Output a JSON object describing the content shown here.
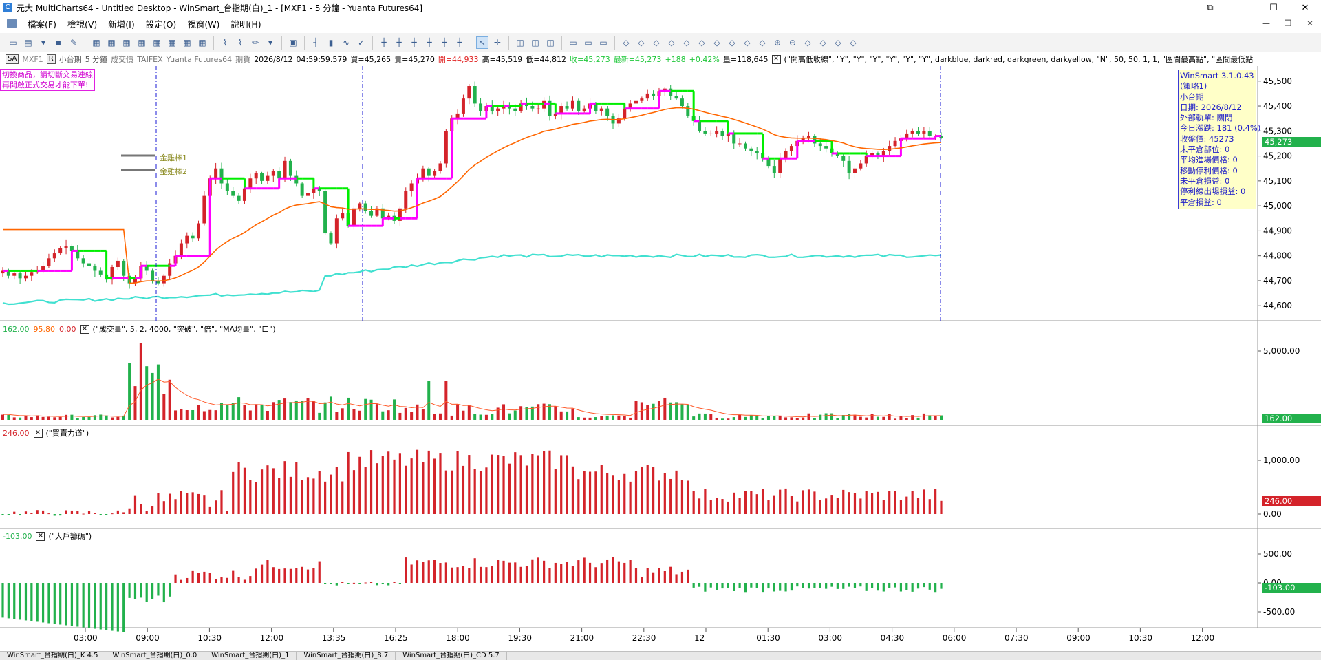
{
  "window": {
    "title": "元大 MultiCharts64 - Untitled Desktop - WinSmart_台指期(白)_1 - [MXF1 - 5 分鐘 - Yuanta Futures64]",
    "controls": [
      "⧉",
      "—",
      "☐",
      "✕"
    ]
  },
  "menu": {
    "items": [
      "檔案(F)",
      "檢視(V)",
      "新增(I)",
      "設定(O)",
      "視窗(W)",
      "說明(H)"
    ],
    "mdi_controls": [
      "—",
      "❐",
      "✕"
    ]
  },
  "toolbar": {
    "groups": [
      [
        "window-icon",
        "folder-icon",
        "dropdown-icon",
        "save-icon",
        "edit-icon"
      ],
      [
        "chart-icon",
        "chart-icon",
        "chart-icon",
        "chart-icon",
        "chart-icon",
        "chart-icon",
        "chart-icon",
        "chart-icon"
      ],
      [
        "indicator-icon",
        "indicator-icon",
        "drawing-icon",
        "dropdown-icon"
      ],
      [
        "format-icon"
      ],
      [
        "bar-icon",
        "candle-icon",
        "line-icon",
        "check-icon"
      ],
      [
        "ohlc-icon",
        "ohlc-icon",
        "ohlc-icon",
        "ohlc-icon",
        "ohlc-icon",
        "ohlc-icon"
      ],
      [
        "cursor-icon",
        "crosshair-icon"
      ],
      [
        "tool-icon",
        "tool-icon",
        "tool-icon"
      ],
      [
        "window-icon",
        "window-icon",
        "window-icon"
      ],
      [
        "nav-icon",
        "nav-icon",
        "nav-icon",
        "nav-icon",
        "nav-icon",
        "nav-icon",
        "nav-icon",
        "nav-icon",
        "nav-icon",
        "nav-icon",
        "zoom-in-icon",
        "zoom-out-icon",
        "nav-icon",
        "nav-icon",
        "nav-icon",
        "nav-icon"
      ]
    ]
  },
  "infobar": {
    "sa": "SA",
    "symbol": "MXF1",
    "r": "R",
    "name": "小台期",
    "interval": "5 分鐘",
    "field": "成交價",
    "exchange": "TAIFEX",
    "feed": "Yuanta Futures64",
    "type": "期貨",
    "date": "2026/8/12",
    "time": "04:59:59.579",
    "bid": "買=45,265",
    "ask": "賣=45,270",
    "open": "開=44,933",
    "high": "高=45,519",
    "low": "低=44,812",
    "close": "收=45,273",
    "last": "最新=45,273",
    "change": "+188",
    "pct": "+0.42%",
    "volume": "量=118,645",
    "study": "(\"開高低收線\", \"Y\", \"Y\", \"Y\", \"Y\", \"Y\", \"Y\", darkblue, darkred, darkgreen, darkyellow, \"N\", 50, 50, 1, 1, \"區間最高點\", \"區間最低點"
  },
  "colors": {
    "up": "#d4232a",
    "down": "#22b14c",
    "stop_up": "#ff00ff",
    "stop_down": "#00ee00",
    "vwap": "#ff6600",
    "cyan": "#40e0d0",
    "session": "#1a1ad6",
    "axis_green": "#22b14c",
    "axis_red": "#d4232a"
  },
  "notice": {
    "line1": "切換商品，請切斷交易連線",
    "line2": "再開啟正式交易才能下單!"
  },
  "labels": {
    "gold1": "金雞棒1",
    "gold2": "金雞棒2"
  },
  "price_axis": {
    "ticks": [
      "45,500",
      "45,400",
      "45,300",
      "45,200",
      "45,100",
      "45,000",
      "44,900",
      "44,800",
      "44,700",
      "44,600"
    ],
    "last_tag": "45,273"
  },
  "volume_panel": {
    "header_vals": [
      "162.00",
      "95.80",
      "0.00"
    ],
    "study": "(\"成交量\", 5, 2, 4000, \"突破\", \"倍\", \"MA均量\", \"口\")",
    "ticks": [
      "5,000.00"
    ],
    "last_tag": "162.00"
  },
  "power_panel": {
    "header_val": "246.00",
    "study": "(\"買賣力道\")",
    "ticks": [
      "1,000.00",
      "0.00"
    ],
    "last_tag": "246.00"
  },
  "whale_panel": {
    "header_val": "-103.00",
    "study": "(\"大戶籌碼\")",
    "ticks": [
      "500.00",
      "0.00",
      "-500.00"
    ],
    "last_tag": "-103.00"
  },
  "time_axis": {
    "labels": [
      "03:00",
      "09:00",
      "10:30",
      "12:00",
      "13:35",
      "16:25",
      "18:00",
      "19:30",
      "21:00",
      "22:30",
      "12",
      "01:30",
      "03:00",
      "04:30",
      "06:00",
      "07:30",
      "09:00",
      "10:30",
      "12:00"
    ]
  },
  "winsmart": {
    "lines": [
      "WinSmart 3.1.0.43",
      "(策略1)",
      "小台期",
      "日期: 2026/8/12",
      "外部軌單: 關閉",
      "今日漲跌: 181 (0.4%)",
      "收盤價: 45273",
      "未平倉部位: 0",
      "平均進場價格: 0",
      "移動停利價格: 0",
      "未平倉損益: 0",
      "停利線出場損益: 0",
      "平倉損益: 0"
    ]
  },
  "tabs": [
    "WinSmart_台指期(白)_K 4.5",
    "WinSmart_台指期(白)_0.0",
    "WinSmart_台指期(白)_1",
    "WinSmart_台指期(白)_8.7",
    "WinSmart_台指期(白)_CD 5.7"
  ],
  "chart_data": {
    "type": "candlestick",
    "price_range": [
      44540,
      45560
    ],
    "close": [
      44740,
      44720,
      44730,
      44710,
      44720,
      44735,
      44740,
      44760,
      44790,
      44810,
      44830,
      44840,
      44820,
      44790,
      44770,
      44760,
      44740,
      44725,
      44705,
      44755,
      44780,
      44720,
      44690,
      44710,
      44760,
      44740,
      44700,
      44690,
      44720,
      44770,
      44800,
      44850,
      44880,
      44870,
      44930,
      45040,
      45110,
      45150,
      45090,
      45060,
      45040,
      45020,
      45070,
      45110,
      45130,
      45100,
      45120,
      45140,
      45110,
      45180,
      45120,
      45090,
      45040,
      45050,
      45070,
      45060,
      44890,
      44850,
      44950,
      44970,
      44920,
      44990,
      45010,
      44980,
      44960,
      44990,
      44950,
      44960,
      44940,
      44990,
      45060,
      45090,
      45110,
      45150,
      45120,
      45140,
      45170,
      45300,
      45350,
      45370,
      45430,
      45480,
      45410,
      45380,
      45400,
      45380,
      45390,
      45400,
      45390,
      45380,
      45410,
      45400,
      45390,
      45390,
      45420,
      45360,
      45370,
      45400,
      45390,
      45420,
      45380,
      45390,
      45410,
      45380,
      45390,
      45360,
      45330,
      45350,
      45390,
      45410,
      45420,
      45430,
      45450,
      45440,
      45460,
      45470,
      45440,
      45430,
      45400,
      45360,
      45340,
      45300,
      45290,
      45290,
      45300,
      45280,
      45290,
      45250,
      45250,
      45230,
      45220,
      45210,
      45190,
      45160,
      45130,
      45190,
      45220,
      45240,
      45260,
      45270,
      45280,
      45250,
      45240,
      45230,
      45210,
      45200,
      45180,
      45130,
      45150,
      45170,
      45200,
      45210,
      45200,
      45220,
      45240,
      45260,
      45270,
      45290,
      45300,
      45290,
      45300,
      45280,
      45280,
      45273
    ],
    "ylabel": ""
  }
}
